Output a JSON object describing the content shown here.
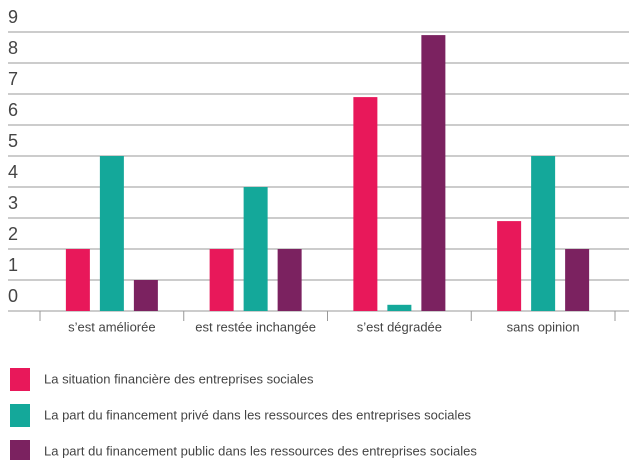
{
  "chart_data": {
    "type": "bar",
    "categories": [
      "s’est améliorée",
      "est restée inchangée",
      "s’est dégradée",
      "sans opinion"
    ],
    "series": [
      {
        "name": "La situation financière des entreprises sociales",
        "color": "#e8185a",
        "values": [
          2,
          2,
          6.9,
          2.9
        ]
      },
      {
        "name": "La part du financement privé dans les ressources des entreprises sociales",
        "color": "#14a89a",
        "values": [
          5,
          4,
          0.2,
          5
        ]
      },
      {
        "name": "La part du financement public dans les ressources des entreprises sociales",
        "color": "#7b2260",
        "values": [
          1,
          2,
          8.9,
          2
        ]
      }
    ],
    "ylim": [
      0,
      9
    ],
    "yticks": [
      0,
      1,
      2,
      3,
      4,
      5,
      6,
      7,
      8,
      9
    ],
    "grid": true,
    "legend": "bottom"
  }
}
